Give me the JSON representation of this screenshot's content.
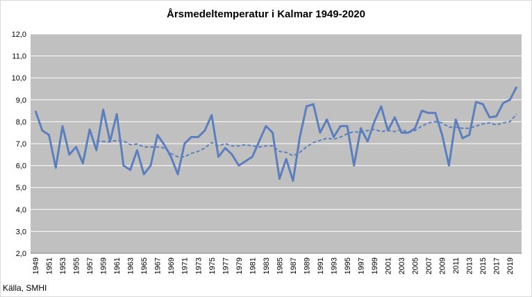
{
  "chart_data": {
    "type": "line",
    "title": "Årsmedeltemperatur i Kalmar 1949-2020",
    "xlabel": "",
    "ylabel": "",
    "ylim": [
      2.0,
      12.0
    ],
    "yticks": [
      "2,0",
      "3,0",
      "4,0",
      "5,0",
      "6,0",
      "7,0",
      "8,0",
      "9,0",
      "10,0",
      "11,0",
      "12,0"
    ],
    "xticks": [
      "1949",
      "1951",
      "1953",
      "1955",
      "1957",
      "1959",
      "1961",
      "1963",
      "1965",
      "1967",
      "1969",
      "1971",
      "1973",
      "1975",
      "1977",
      "1979",
      "1981",
      "1983",
      "1985",
      "1987",
      "1989",
      "1991",
      "1993",
      "1995",
      "1997",
      "1999",
      "2001",
      "2003",
      "2005",
      "2007",
      "2009",
      "2011",
      "2013",
      "2015",
      "2017",
      "2019"
    ],
    "x": [
      1949,
      1950,
      1951,
      1952,
      1953,
      1954,
      1955,
      1956,
      1957,
      1958,
      1959,
      1960,
      1961,
      1962,
      1963,
      1964,
      1965,
      1966,
      1967,
      1968,
      1969,
      1970,
      1971,
      1972,
      1973,
      1974,
      1975,
      1976,
      1977,
      1978,
      1979,
      1980,
      1981,
      1982,
      1983,
      1984,
      1985,
      1986,
      1987,
      1988,
      1989,
      1990,
      1991,
      1992,
      1993,
      1994,
      1995,
      1996,
      1997,
      1998,
      1999,
      2000,
      2001,
      2002,
      2003,
      2004,
      2005,
      2006,
      2007,
      2008,
      2009,
      2010,
      2011,
      2012,
      2013,
      2014,
      2015,
      2016,
      2017,
      2018,
      2019,
      2020
    ],
    "grid": true,
    "series": [
      {
        "style": "solid",
        "color": "#5b7fbd",
        "values": [
          8.5,
          7.6,
          7.4,
          5.9,
          7.8,
          6.5,
          6.85,
          6.1,
          7.65,
          6.7,
          8.55,
          7.1,
          8.35,
          6.0,
          5.8,
          6.7,
          5.6,
          6.0,
          7.4,
          6.95,
          6.4,
          5.6,
          7.0,
          7.3,
          7.3,
          7.6,
          8.3,
          6.4,
          6.8,
          6.5,
          6.0,
          6.2,
          6.4,
          7.1,
          7.8,
          7.5,
          5.4,
          6.3,
          5.3,
          7.3,
          8.7,
          8.8,
          7.5,
          8.1,
          7.3,
          7.8,
          7.8,
          6.0,
          7.7,
          7.1,
          8.0,
          8.7,
          7.6,
          8.2,
          7.5,
          7.5,
          7.7,
          8.5,
          8.4,
          8.4,
          7.4,
          6.0,
          8.1,
          7.25,
          7.4,
          8.9,
          8.8,
          8.2,
          8.25,
          8.85,
          9.0,
          9.6
        ]
      },
      {
        "style": "dashed",
        "color": "#5b7fbd",
        "values": [
          null,
          null,
          null,
          null,
          null,
          null,
          null,
          null,
          null,
          7.12,
          7.1,
          7.08,
          7.15,
          7.12,
          6.95,
          6.98,
          6.85,
          6.85,
          6.85,
          6.8,
          6.55,
          6.4,
          6.4,
          6.55,
          6.65,
          6.8,
          7.05,
          6.9,
          7.0,
          6.9,
          6.9,
          6.95,
          6.9,
          6.85,
          6.9,
          6.9,
          6.65,
          6.6,
          6.45,
          6.6,
          6.85,
          7.05,
          7.15,
          7.25,
          7.2,
          7.3,
          7.45,
          7.55,
          7.5,
          7.6,
          7.65,
          7.55,
          7.6,
          7.55,
          7.65,
          7.5,
          7.6,
          7.8,
          7.95,
          8.0,
          7.95,
          7.75,
          7.75,
          7.7,
          7.7,
          7.8,
          7.9,
          7.95,
          7.85,
          7.95,
          8.0,
          8.35
        ]
      }
    ]
  },
  "source_text": "Källa, SMHI",
  "colors": {
    "plot_bg": "#c0c0c0",
    "grid": "#ffffff",
    "line": "#5b7fbd"
  }
}
